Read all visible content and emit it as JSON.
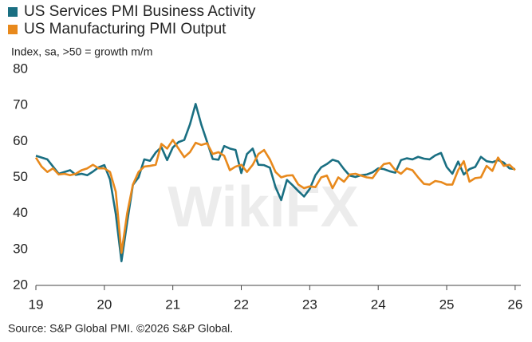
{
  "chart_data": {
    "type": "line",
    "series": [
      {
        "name": "US Services PMI Business Activity",
        "color": "#1a6f82",
        "values": [
          56,
          55.5,
          55,
          53,
          51,
          51.5,
          52,
          50.7,
          51,
          50.6,
          51.6,
          52.8,
          53.4,
          49.4,
          39.8,
          26.7,
          37.5,
          47.9,
          50,
          55,
          54.6,
          56.9,
          58.4,
          54.8,
          58.3,
          59.8,
          60.4,
          64.7,
          70.4,
          64.6,
          59.9,
          55.1,
          54.9,
          58.7,
          58,
          57.6,
          51.2,
          56.5,
          58,
          53.5,
          53.4,
          52.7,
          47.3,
          43.7,
          49.3,
          47.8,
          46.2,
          44.7,
          46.8,
          50.6,
          52.8,
          53.7,
          54.9,
          54.4,
          52.3,
          50.5,
          50.1,
          50.6,
          50.8,
          51.4,
          52.5,
          52.3,
          51.7,
          51.3,
          54.8,
          55.3,
          55,
          55.7,
          55.2,
          55,
          56.1,
          56.8,
          52.9,
          51,
          54.4,
          50.8,
          52.3,
          52.9,
          55.7,
          54.5,
          54.2,
          54.8,
          54.1,
          52.5,
          52.3
        ]
      },
      {
        "name": "US Manufacturing PMI Output",
        "color": "#e8891c",
        "values": [
          55.5,
          53,
          51.5,
          52.5,
          50.8,
          51,
          50.6,
          51,
          52,
          52.5,
          53.5,
          52.5,
          52.5,
          51.5,
          46,
          29,
          40,
          48,
          51.5,
          53,
          53.2,
          53.5,
          59.3,
          58,
          60.4,
          58,
          55.6,
          57,
          59.6,
          59,
          59.5,
          56.5,
          57,
          56,
          52,
          53,
          53.5,
          51.5,
          53.5,
          56.5,
          57.6,
          55,
          51.5,
          50,
          50.5,
          50.6,
          48,
          47,
          47.5,
          47.3,
          50,
          50.5,
          47,
          50,
          48.8,
          50.8,
          51,
          50.5,
          50,
          49.8,
          52,
          53.7,
          54,
          52,
          51,
          52.5,
          52,
          50,
          48.2,
          48,
          49,
          48.7,
          48,
          48,
          52,
          54.5,
          48.8,
          49.8,
          50,
          53.2,
          51.8,
          55.5,
          53.2,
          53.5,
          52
        ]
      }
    ],
    "x": [
      2019,
      2019.083,
      2019.167,
      2019.25,
      2019.333,
      2019.417,
      2019.5,
      2019.583,
      2019.667,
      2019.75,
      2019.833,
      2019.917,
      2020,
      2020.083,
      2020.167,
      2020.25,
      2020.333,
      2020.417,
      2020.5,
      2020.583,
      2020.667,
      2020.75,
      2020.833,
      2020.917,
      2021,
      2021.083,
      2021.167,
      2021.25,
      2021.333,
      2021.417,
      2021.5,
      2021.583,
      2021.667,
      2021.75,
      2021.833,
      2021.917,
      2022,
      2022.083,
      2022.167,
      2022.25,
      2022.333,
      2022.417,
      2022.5,
      2022.583,
      2022.667,
      2022.75,
      2022.833,
      2022.917,
      2023,
      2023.083,
      2023.167,
      2023.25,
      2023.333,
      2023.417,
      2023.5,
      2023.583,
      2023.667,
      2023.75,
      2023.833,
      2023.917,
      2024,
      2024.083,
      2024.167,
      2024.25,
      2024.333,
      2024.417,
      2024.5,
      2024.583,
      2024.667,
      2024.75,
      2024.833,
      2024.917,
      2025,
      2025.083,
      2025.167,
      2025.25,
      2025.333,
      2025.417,
      2025.5,
      2025.583,
      2025.667,
      2025.75,
      2025.833,
      2025.917,
      2026
    ],
    "subtitle": "Index, sa, >50 = growth m/m",
    "source": "Source: S&P Global PMI. ©2026 S&P Global.",
    "watermark": "WikiFX",
    "xlim": [
      2019,
      2026.083
    ],
    "xticks": [
      {
        "value": 2019,
        "label": "19"
      },
      {
        "value": 2020,
        "label": "20"
      },
      {
        "value": 2021,
        "label": "21"
      },
      {
        "value": 2022,
        "label": "22"
      },
      {
        "value": 2023,
        "label": "23"
      },
      {
        "value": 2024,
        "label": "24"
      },
      {
        "value": 2025,
        "label": "25"
      },
      {
        "value": 2026,
        "label": "26"
      }
    ],
    "ylim": [
      20,
      80
    ],
    "yticks": [
      20,
      30,
      40,
      50,
      60,
      70,
      80
    ],
    "grid": false
  }
}
